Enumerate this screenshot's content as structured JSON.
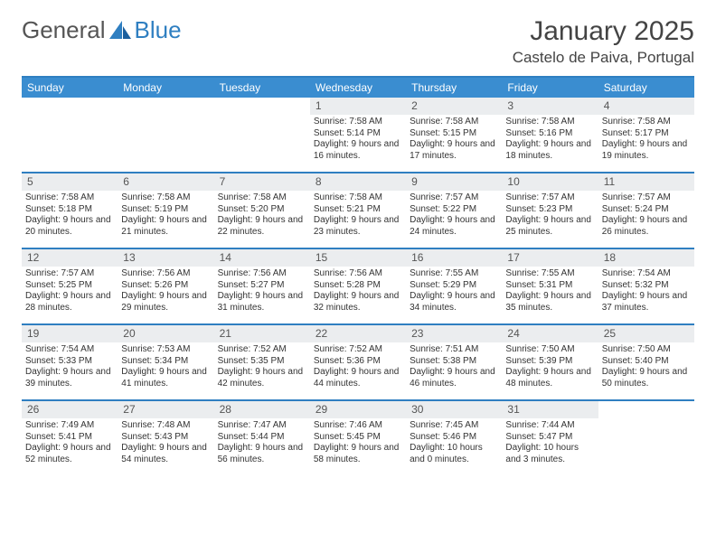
{
  "logo": {
    "text1": "General",
    "text2": "Blue"
  },
  "title": "January 2025",
  "location": "Castelo de Paiva, Portugal",
  "colors": {
    "header_bg": "#3a8dd0",
    "header_text": "#ffffff",
    "border": "#2f7fc1",
    "daynum_bg": "#ebedef",
    "text": "#333333",
    "logo_gray": "#555555",
    "logo_blue": "#2f7fc1"
  },
  "day_labels": [
    "Sunday",
    "Monday",
    "Tuesday",
    "Wednesday",
    "Thursday",
    "Friday",
    "Saturday"
  ],
  "weeks": [
    [
      {
        "n": "",
        "sr": "",
        "ss": "",
        "dl": ""
      },
      {
        "n": "",
        "sr": "",
        "ss": "",
        "dl": ""
      },
      {
        "n": "",
        "sr": "",
        "ss": "",
        "dl": ""
      },
      {
        "n": "1",
        "sr": "7:58 AM",
        "ss": "5:14 PM",
        "dl": "9 hours and 16 minutes."
      },
      {
        "n": "2",
        "sr": "7:58 AM",
        "ss": "5:15 PM",
        "dl": "9 hours and 17 minutes."
      },
      {
        "n": "3",
        "sr": "7:58 AM",
        "ss": "5:16 PM",
        "dl": "9 hours and 18 minutes."
      },
      {
        "n": "4",
        "sr": "7:58 AM",
        "ss": "5:17 PM",
        "dl": "9 hours and 19 minutes."
      }
    ],
    [
      {
        "n": "5",
        "sr": "7:58 AM",
        "ss": "5:18 PM",
        "dl": "9 hours and 20 minutes."
      },
      {
        "n": "6",
        "sr": "7:58 AM",
        "ss": "5:19 PM",
        "dl": "9 hours and 21 minutes."
      },
      {
        "n": "7",
        "sr": "7:58 AM",
        "ss": "5:20 PM",
        "dl": "9 hours and 22 minutes."
      },
      {
        "n": "8",
        "sr": "7:58 AM",
        "ss": "5:21 PM",
        "dl": "9 hours and 23 minutes."
      },
      {
        "n": "9",
        "sr": "7:57 AM",
        "ss": "5:22 PM",
        "dl": "9 hours and 24 minutes."
      },
      {
        "n": "10",
        "sr": "7:57 AM",
        "ss": "5:23 PM",
        "dl": "9 hours and 25 minutes."
      },
      {
        "n": "11",
        "sr": "7:57 AM",
        "ss": "5:24 PM",
        "dl": "9 hours and 26 minutes."
      }
    ],
    [
      {
        "n": "12",
        "sr": "7:57 AM",
        "ss": "5:25 PM",
        "dl": "9 hours and 28 minutes."
      },
      {
        "n": "13",
        "sr": "7:56 AM",
        "ss": "5:26 PM",
        "dl": "9 hours and 29 minutes."
      },
      {
        "n": "14",
        "sr": "7:56 AM",
        "ss": "5:27 PM",
        "dl": "9 hours and 31 minutes."
      },
      {
        "n": "15",
        "sr": "7:56 AM",
        "ss": "5:28 PM",
        "dl": "9 hours and 32 minutes."
      },
      {
        "n": "16",
        "sr": "7:55 AM",
        "ss": "5:29 PM",
        "dl": "9 hours and 34 minutes."
      },
      {
        "n": "17",
        "sr": "7:55 AM",
        "ss": "5:31 PM",
        "dl": "9 hours and 35 minutes."
      },
      {
        "n": "18",
        "sr": "7:54 AM",
        "ss": "5:32 PM",
        "dl": "9 hours and 37 minutes."
      }
    ],
    [
      {
        "n": "19",
        "sr": "7:54 AM",
        "ss": "5:33 PM",
        "dl": "9 hours and 39 minutes."
      },
      {
        "n": "20",
        "sr": "7:53 AM",
        "ss": "5:34 PM",
        "dl": "9 hours and 41 minutes."
      },
      {
        "n": "21",
        "sr": "7:52 AM",
        "ss": "5:35 PM",
        "dl": "9 hours and 42 minutes."
      },
      {
        "n": "22",
        "sr": "7:52 AM",
        "ss": "5:36 PM",
        "dl": "9 hours and 44 minutes."
      },
      {
        "n": "23",
        "sr": "7:51 AM",
        "ss": "5:38 PM",
        "dl": "9 hours and 46 minutes."
      },
      {
        "n": "24",
        "sr": "7:50 AM",
        "ss": "5:39 PM",
        "dl": "9 hours and 48 minutes."
      },
      {
        "n": "25",
        "sr": "7:50 AM",
        "ss": "5:40 PM",
        "dl": "9 hours and 50 minutes."
      }
    ],
    [
      {
        "n": "26",
        "sr": "7:49 AM",
        "ss": "5:41 PM",
        "dl": "9 hours and 52 minutes."
      },
      {
        "n": "27",
        "sr": "7:48 AM",
        "ss": "5:43 PM",
        "dl": "9 hours and 54 minutes."
      },
      {
        "n": "28",
        "sr": "7:47 AM",
        "ss": "5:44 PM",
        "dl": "9 hours and 56 minutes."
      },
      {
        "n": "29",
        "sr": "7:46 AM",
        "ss": "5:45 PM",
        "dl": "9 hours and 58 minutes."
      },
      {
        "n": "30",
        "sr": "7:45 AM",
        "ss": "5:46 PM",
        "dl": "10 hours and 0 minutes."
      },
      {
        "n": "31",
        "sr": "7:44 AM",
        "ss": "5:47 PM",
        "dl": "10 hours and 3 minutes."
      },
      {
        "n": "",
        "sr": "",
        "ss": "",
        "dl": ""
      }
    ]
  ],
  "labels": {
    "sunrise": "Sunrise: ",
    "sunset": "Sunset: ",
    "daylight": "Daylight: "
  }
}
